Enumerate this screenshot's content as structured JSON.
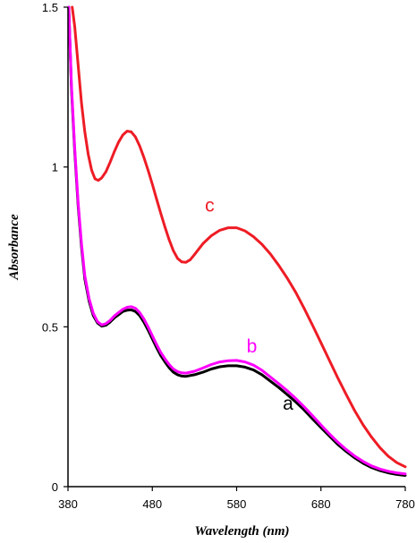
{
  "chart_data": {
    "type": "line",
    "title": "",
    "xlabel": "Wavelength (nm)",
    "ylabel": "Absorbance",
    "xlim": [
      380,
      780
    ],
    "ylim": [
      0,
      1.5
    ],
    "xticks": [
      "380",
      "480",
      "580",
      "680",
      "780"
    ],
    "yticks": [
      "0",
      "0.5",
      "1",
      "1.5"
    ],
    "xtick_values": [
      380,
      480,
      580,
      680,
      780
    ],
    "ytick_values": [
      0,
      0.5,
      1,
      1.5
    ],
    "grid": false,
    "series": [
      {
        "label": "a",
        "color": "#000000",
        "points": [
          [
            381,
            1.5
          ],
          [
            384,
            1.25
          ],
          [
            388,
            1.05
          ],
          [
            392,
            0.88
          ],
          [
            396,
            0.75
          ],
          [
            400,
            0.65
          ],
          [
            405,
            0.58
          ],
          [
            410,
            0.535
          ],
          [
            415,
            0.512
          ],
          [
            420,
            0.502
          ],
          [
            425,
            0.505
          ],
          [
            430,
            0.515
          ],
          [
            435,
            0.528
          ],
          [
            440,
            0.538
          ],
          [
            445,
            0.548
          ],
          [
            450,
            0.552
          ],
          [
            455,
            0.553
          ],
          [
            460,
            0.548
          ],
          [
            465,
            0.535
          ],
          [
            470,
            0.515
          ],
          [
            475,
            0.49
          ],
          [
            480,
            0.462
          ],
          [
            485,
            0.435
          ],
          [
            490,
            0.41
          ],
          [
            495,
            0.39
          ],
          [
            500,
            0.372
          ],
          [
            505,
            0.358
          ],
          [
            510,
            0.35
          ],
          [
            515,
            0.346
          ],
          [
            520,
            0.345
          ],
          [
            530,
            0.35
          ],
          [
            540,
            0.358
          ],
          [
            550,
            0.368
          ],
          [
            560,
            0.375
          ],
          [
            570,
            0.378
          ],
          [
            580,
            0.378
          ],
          [
            590,
            0.374
          ],
          [
            600,
            0.365
          ],
          [
            610,
            0.35
          ],
          [
            620,
            0.33
          ],
          [
            630,
            0.31
          ],
          [
            640,
            0.288
          ],
          [
            650,
            0.265
          ],
          [
            660,
            0.24
          ],
          [
            670,
            0.212
          ],
          [
            680,
            0.185
          ],
          [
            690,
            0.158
          ],
          [
            700,
            0.132
          ],
          [
            710,
            0.11
          ],
          [
            720,
            0.09
          ],
          [
            730,
            0.073
          ],
          [
            740,
            0.06
          ],
          [
            750,
            0.05
          ],
          [
            760,
            0.043
          ],
          [
            770,
            0.038
          ],
          [
            780,
            0.035
          ]
        ]
      },
      {
        "label": "b",
        "color": "#ff00ff",
        "points": [
          [
            381,
            1.5
          ],
          [
            384,
            1.26
          ],
          [
            388,
            1.06
          ],
          [
            392,
            0.89
          ],
          [
            396,
            0.76
          ],
          [
            400,
            0.66
          ],
          [
            405,
            0.588
          ],
          [
            410,
            0.542
          ],
          [
            415,
            0.516
          ],
          [
            420,
            0.506
          ],
          [
            425,
            0.51
          ],
          [
            430,
            0.52
          ],
          [
            435,
            0.534
          ],
          [
            440,
            0.545
          ],
          [
            445,
            0.555
          ],
          [
            450,
            0.561
          ],
          [
            455,
            0.563
          ],
          [
            460,
            0.558
          ],
          [
            465,
            0.545
          ],
          [
            470,
            0.525
          ],
          [
            475,
            0.5
          ],
          [
            480,
            0.472
          ],
          [
            485,
            0.445
          ],
          [
            490,
            0.42
          ],
          [
            495,
            0.4
          ],
          [
            500,
            0.382
          ],
          [
            505,
            0.368
          ],
          [
            510,
            0.36
          ],
          [
            515,
            0.356
          ],
          [
            520,
            0.355
          ],
          [
            530,
            0.361
          ],
          [
            540,
            0.371
          ],
          [
            550,
            0.382
          ],
          [
            560,
            0.39
          ],
          [
            570,
            0.394
          ],
          [
            580,
            0.395
          ],
          [
            590,
            0.39
          ],
          [
            600,
            0.38
          ],
          [
            610,
            0.364
          ],
          [
            620,
            0.343
          ],
          [
            630,
            0.322
          ],
          [
            640,
            0.3
          ],
          [
            650,
            0.276
          ],
          [
            660,
            0.25
          ],
          [
            670,
            0.222
          ],
          [
            680,
            0.193
          ],
          [
            690,
            0.165
          ],
          [
            700,
            0.139
          ],
          [
            710,
            0.116
          ],
          [
            720,
            0.096
          ],
          [
            730,
            0.079
          ],
          [
            740,
            0.065
          ],
          [
            750,
            0.055
          ],
          [
            760,
            0.048
          ],
          [
            770,
            0.043
          ],
          [
            780,
            0.04
          ]
        ]
      },
      {
        "label": "c",
        "color": "#ee1c25",
        "points": [
          [
            385,
            1.5
          ],
          [
            388,
            1.44
          ],
          [
            392,
            1.32
          ],
          [
            396,
            1.2
          ],
          [
            400,
            1.11
          ],
          [
            404,
            1.04
          ],
          [
            408,
            0.99
          ],
          [
            412,
            0.963
          ],
          [
            416,
            0.958
          ],
          [
            420,
            0.966
          ],
          [
            425,
            0.985
          ],
          [
            430,
            1.015
          ],
          [
            435,
            1.048
          ],
          [
            440,
            1.078
          ],
          [
            445,
            1.1
          ],
          [
            450,
            1.112
          ],
          [
            455,
            1.11
          ],
          [
            460,
            1.094
          ],
          [
            465,
            1.066
          ],
          [
            470,
            1.03
          ],
          [
            475,
            0.99
          ],
          [
            480,
            0.946
          ],
          [
            485,
            0.9
          ],
          [
            490,
            0.855
          ],
          [
            495,
            0.812
          ],
          [
            500,
            0.772
          ],
          [
            505,
            0.738
          ],
          [
            510,
            0.714
          ],
          [
            515,
            0.703
          ],
          [
            520,
            0.702
          ],
          [
            525,
            0.71
          ],
          [
            530,
            0.726
          ],
          [
            540,
            0.76
          ],
          [
            550,
            0.785
          ],
          [
            560,
            0.802
          ],
          [
            570,
            0.81
          ],
          [
            580,
            0.81
          ],
          [
            590,
            0.8
          ],
          [
            600,
            0.782
          ],
          [
            610,
            0.758
          ],
          [
            620,
            0.728
          ],
          [
            630,
            0.692
          ],
          [
            640,
            0.652
          ],
          [
            650,
            0.608
          ],
          [
            660,
            0.558
          ],
          [
            670,
            0.505
          ],
          [
            680,
            0.45
          ],
          [
            690,
            0.395
          ],
          [
            700,
            0.34
          ],
          [
            710,
            0.288
          ],
          [
            720,
            0.238
          ],
          [
            730,
            0.193
          ],
          [
            740,
            0.155
          ],
          [
            750,
            0.122
          ],
          [
            760,
            0.095
          ],
          [
            770,
            0.075
          ],
          [
            780,
            0.062
          ]
        ]
      }
    ],
    "annotations": [
      {
        "text": "a",
        "x": 641,
        "y": 0.26,
        "color": "#000000"
      },
      {
        "text": "b",
        "x": 598,
        "y": 0.44,
        "color": "#ff00ff"
      },
      {
        "text": "c",
        "x": 548,
        "y": 0.88,
        "color": "#ee1c25"
      }
    ]
  }
}
